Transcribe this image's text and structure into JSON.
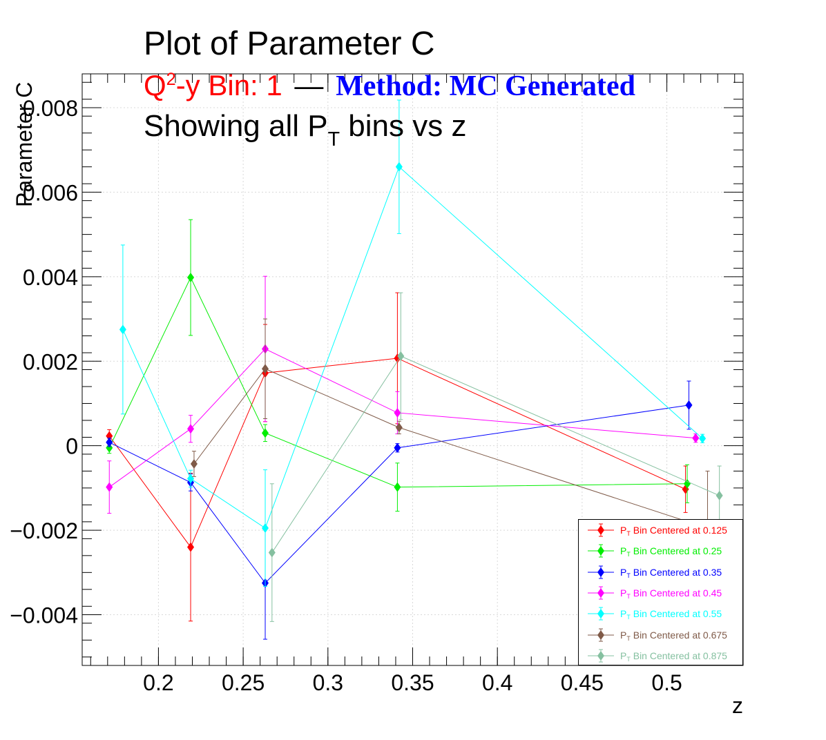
{
  "title": {
    "line1": "Plot of Parameter C",
    "line2_q": "Q",
    "line2_sup": "2",
    "line2_rest": "-y Bin: 1",
    "line2_dash": "—",
    "line2_method": "Method: MC Generated",
    "line3_a": "Showing all P",
    "line3_sub": "T",
    "line3_b": " bins vs z"
  },
  "colors": {
    "red": "#ff0000",
    "green": "#00ee00",
    "blue": "#0000ff",
    "magenta": "#ff00ff",
    "cyan": "#00ffff",
    "brown": "#7f5a48",
    "sage": "#85c0a0"
  },
  "chart_data": {
    "type": "scatter",
    "xlabel": "z",
    "ylabel": "Parameter C",
    "xlim": [
      0.155,
      0.545
    ],
    "ylim": [
      -0.0052,
      0.0088
    ],
    "xticks": [
      "0.2",
      "0.25",
      "0.3",
      "0.35",
      "0.4",
      "0.45",
      "0.5"
    ],
    "yticks": [
      "−0.004",
      "−0.002",
      "0",
      "0.002",
      "0.004",
      "0.006",
      "0.008"
    ],
    "grid": true,
    "legend_position": "bottom-right",
    "series": [
      {
        "name": "P_T Bin Centered at 0.125",
        "legend_main": "P",
        "legend_sub": "T",
        "legend_rest": " Bin Centered at 0.125",
        "color": "#ff0000",
        "x": [
          0.171,
          0.219,
          0.263,
          0.341,
          0.511
        ],
        "y": [
          0.00023,
          -0.0024,
          0.00172,
          0.00207,
          -0.00103
        ],
        "err": [
          0.00015,
          0.00175,
          0.00115,
          0.00155,
          0.00055
        ]
      },
      {
        "name": "P_T Bin Centered at 0.25",
        "legend_main": "P",
        "legend_sub": "T",
        "legend_rest": " Bin Centered at 0.25",
        "color": "#00ee00",
        "x": [
          0.171,
          0.219,
          0.263,
          0.341,
          0.512
        ],
        "y": [
          -5e-05,
          0.00398,
          0.0003,
          -0.00098,
          -0.0009
        ],
        "err": [
          0.00013,
          0.00137,
          0.0002,
          0.00057,
          0.00045
        ]
      },
      {
        "name": "P_T Bin Centered at 0.35",
        "legend_main": "P",
        "legend_sub": "T",
        "legend_rest": " Bin Centered at 0.35",
        "color": "#0000ff",
        "x": [
          0.171,
          0.219,
          0.263,
          0.341,
          0.513
        ],
        "y": [
          8e-05,
          -0.00087,
          -0.00325,
          -5e-05,
          0.00096
        ],
        "err": [
          0.0001,
          0.0002,
          0.00133,
          0.0001,
          0.00057
        ]
      },
      {
        "name": "P_T Bin Centered at 0.45",
        "legend_main": "P",
        "legend_sub": "T",
        "legend_rest": " Bin Centered at 0.45",
        "color": "#ff00ff",
        "x": [
          0.171,
          0.219,
          0.263,
          0.341,
          0.517
        ],
        "y": [
          -0.00098,
          0.0004,
          0.00229,
          0.00078,
          0.00018
        ],
        "err": [
          0.00062,
          0.00032,
          0.00172,
          0.0005,
          0.0001
        ]
      },
      {
        "name": "P_T Bin Centered at 0.55",
        "legend_main": "P",
        "legend_sub": "T",
        "legend_rest": " Bin Centered at 0.55",
        "color": "#00ffff",
        "x": [
          0.179,
          0.219,
          0.263,
          0.342,
          0.521
        ],
        "y": [
          0.00275,
          -0.00078,
          -0.00195,
          0.0066,
          0.00017
        ],
        "err": [
          0.002,
          0.0002,
          0.00138,
          0.00158,
          0.0001
        ]
      },
      {
        "name": "P_T Bin Centered at 0.675",
        "legend_main": "P",
        "legend_sub": "T",
        "legend_rest": " Bin Centered at 0.675",
        "color": "#7f5a48",
        "x": [
          0.221,
          0.263,
          0.342,
          0.524
        ],
        "y": [
          -0.00043,
          0.00182,
          0.00043,
          -0.00195
        ],
        "err": [
          0.0003,
          0.00118,
          0.00015,
          0.00135
        ]
      },
      {
        "name": "P_T Bin Centered at 0.875",
        "legend_main": "P",
        "legend_sub": "T",
        "legend_rest": " Bin Centered at 0.875",
        "color": "#85c0a0",
        "x": [
          0.267,
          0.343,
          0.531
        ],
        "y": [
          -0.00253,
          0.00212,
          -0.00118
        ],
        "err": [
          0.00163,
          0.0015,
          0.0007
        ]
      }
    ]
  }
}
